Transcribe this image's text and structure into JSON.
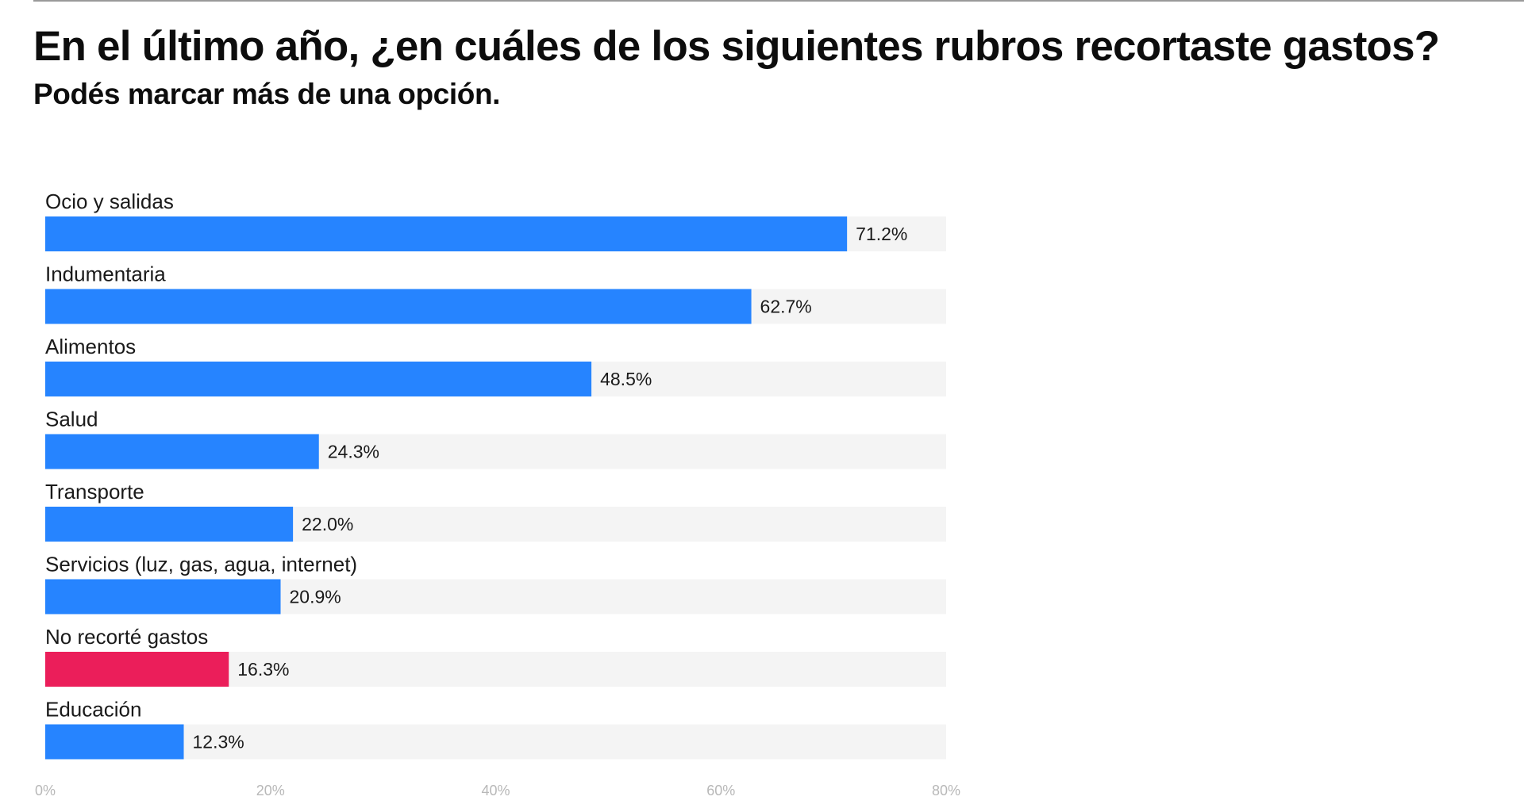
{
  "header": {
    "title": "En el último año, ¿en cuáles de los siguientes rubros recortaste gastos?",
    "subtitle": "Podés marcar más de una opción."
  },
  "colors": {
    "bar_primary": "#2684FF",
    "bar_highlight": "#EB1E5A",
    "track": "#F4F4F4",
    "tick_text": "#B8B8B8",
    "text": "#1A1A1A"
  },
  "chart_data": {
    "type": "bar",
    "orientation": "horizontal",
    "title": "En el último año, ¿en cuáles de los siguientes rubros recortaste gastos?",
    "subtitle": "Podés marcar más de una opción.",
    "xlabel": "",
    "ylabel": "",
    "xlim": [
      0,
      80
    ],
    "ticks": [
      0,
      20,
      40,
      60,
      80
    ],
    "tick_labels": [
      "0%",
      "20%",
      "40%",
      "60%",
      "80%"
    ],
    "categories": [
      "Ocio y salidas",
      "Indumentaria",
      "Alimentos",
      "Salud",
      "Transporte",
      "Servicios (luz, gas, agua, internet)",
      "No recorté gastos",
      "Educación"
    ],
    "values": [
      71.2,
      62.7,
      48.5,
      24.3,
      22.0,
      20.9,
      16.3,
      12.3
    ],
    "value_labels": [
      "71.2%",
      "62.7%",
      "48.5%",
      "24.3%",
      "22.0%",
      "20.9%",
      "16.3%",
      "12.3%"
    ],
    "highlight": [
      false,
      false,
      false,
      false,
      false,
      false,
      true,
      false
    ],
    "legend": "none",
    "grid": false
  }
}
